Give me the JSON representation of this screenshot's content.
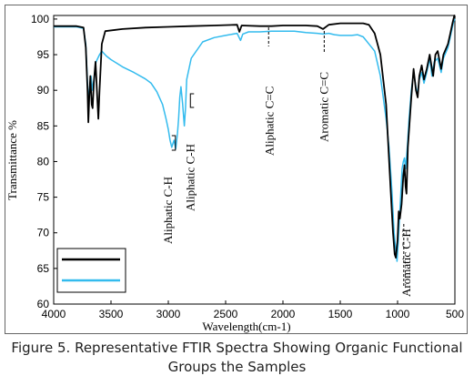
{
  "chart_data": {
    "type": "line",
    "title": "",
    "xlabel": "Wavelength(cm-1)",
    "ylabel": "Transmittance %",
    "xlim": [
      4000,
      500
    ],
    "ylim": [
      60,
      100.5
    ],
    "x_ticks": [
      4000,
      3500,
      3000,
      2500,
      2000,
      1500,
      1000,
      500
    ],
    "y_ticks": [
      60,
      65,
      70,
      75,
      80,
      85,
      90,
      95,
      100
    ],
    "grid": false,
    "legend_position": "bottom-left",
    "series": [
      {
        "color": "#000000",
        "points": [
          [
            4000,
            99.0
          ],
          [
            3800,
            99.0
          ],
          [
            3740,
            98.8
          ],
          [
            3720,
            96.0
          ],
          [
            3705,
            90.0
          ],
          [
            3698,
            85.5
          ],
          [
            3690,
            89.0
          ],
          [
            3680,
            92.0
          ],
          [
            3668,
            88.0
          ],
          [
            3660,
            87.5
          ],
          [
            3650,
            91.0
          ],
          [
            3635,
            94.0
          ],
          [
            3618,
            88.5
          ],
          [
            3610,
            86.0
          ],
          [
            3600,
            90.0
          ],
          [
            3580,
            96.5
          ],
          [
            3550,
            98.3
          ],
          [
            3400,
            98.6
          ],
          [
            3200,
            98.8
          ],
          [
            3000,
            98.9
          ],
          [
            2800,
            99.0
          ],
          [
            2600,
            99.1
          ],
          [
            2400,
            99.2
          ],
          [
            2380,
            98.2
          ],
          [
            2360,
            99.1
          ],
          [
            2200,
            99.0
          ],
          [
            2100,
            99.0
          ],
          [
            2000,
            99.1
          ],
          [
            1800,
            99.1
          ],
          [
            1700,
            99.0
          ],
          [
            1650,
            98.6
          ],
          [
            1600,
            99.2
          ],
          [
            1500,
            99.4
          ],
          [
            1400,
            99.4
          ],
          [
            1300,
            99.4
          ],
          [
            1250,
            99.2
          ],
          [
            1200,
            98.0
          ],
          [
            1150,
            95.0
          ],
          [
            1100,
            88.0
          ],
          [
            1080,
            82.0
          ],
          [
            1060,
            76.0
          ],
          [
            1040,
            70.0
          ],
          [
            1025,
            67.0
          ],
          [
            1015,
            66.5
          ],
          [
            1000,
            69.0
          ],
          [
            990,
            73.0
          ],
          [
            980,
            72.0
          ],
          [
            965,
            74.0
          ],
          [
            950,
            78.0
          ],
          [
            940,
            79.5
          ],
          [
            930,
            76.5
          ],
          [
            922,
            75.5
          ],
          [
            910,
            82.0
          ],
          [
            880,
            89.0
          ],
          [
            860,
            93.0
          ],
          [
            840,
            90.0
          ],
          [
            825,
            89.0
          ],
          [
            810,
            92.0
          ],
          [
            790,
            93.5
          ],
          [
            770,
            91.5
          ],
          [
            745,
            93.0
          ],
          [
            720,
            95.0
          ],
          [
            700,
            93.0
          ],
          [
            690,
            92.0
          ],
          [
            670,
            95.0
          ],
          [
            650,
            95.5
          ],
          [
            620,
            93.0
          ],
          [
            600,
            95.0
          ],
          [
            560,
            96.5
          ],
          [
            540,
            98.0
          ],
          [
            520,
            99.5
          ],
          [
            505,
            100.5
          ],
          [
            500,
            100.2
          ]
        ]
      },
      {
        "color": "#33bbee",
        "points": [
          [
            4000,
            98.9
          ],
          [
            3800,
            98.9
          ],
          [
            3740,
            98.7
          ],
          [
            3720,
            96.5
          ],
          [
            3705,
            91.0
          ],
          [
            3698,
            87.5
          ],
          [
            3690,
            90.0
          ],
          [
            3675,
            92.0
          ],
          [
            3660,
            90.0
          ],
          [
            3650,
            91.5
          ],
          [
            3630,
            94.0
          ],
          [
            3600,
            95.0
          ],
          [
            3580,
            95.5
          ],
          [
            3540,
            94.8
          ],
          [
            3500,
            94.3
          ],
          [
            3450,
            93.8
          ],
          [
            3400,
            93.3
          ],
          [
            3300,
            92.5
          ],
          [
            3200,
            91.6
          ],
          [
            3150,
            91.0
          ],
          [
            3100,
            89.8
          ],
          [
            3050,
            88.0
          ],
          [
            3020,
            86.0
          ],
          [
            3000,
            84.5
          ],
          [
            2985,
            83.0
          ],
          [
            2970,
            82.0
          ],
          [
            2960,
            82.5
          ],
          [
            2950,
            83.0
          ],
          [
            2935,
            81.8
          ],
          [
            2920,
            84.0
          ],
          [
            2910,
            86.0
          ],
          [
            2900,
            89.0
          ],
          [
            2890,
            90.5
          ],
          [
            2875,
            88.0
          ],
          [
            2860,
            85.0
          ],
          [
            2850,
            87.5
          ],
          [
            2840,
            91.5
          ],
          [
            2800,
            94.5
          ],
          [
            2700,
            96.8
          ],
          [
            2600,
            97.4
          ],
          [
            2500,
            97.7
          ],
          [
            2400,
            98.0
          ],
          [
            2370,
            97.0
          ],
          [
            2350,
            97.9
          ],
          [
            2300,
            98.2
          ],
          [
            2200,
            98.2
          ],
          [
            2100,
            98.3
          ],
          [
            2000,
            98.3
          ],
          [
            1900,
            98.3
          ],
          [
            1800,
            98.1
          ],
          [
            1700,
            98.0
          ],
          [
            1650,
            97.9
          ],
          [
            1600,
            98.0
          ],
          [
            1550,
            97.8
          ],
          [
            1500,
            97.7
          ],
          [
            1400,
            97.7
          ],
          [
            1350,
            97.8
          ],
          [
            1300,
            97.5
          ],
          [
            1250,
            96.5
          ],
          [
            1200,
            95.5
          ],
          [
            1150,
            92.0
          ],
          [
            1100,
            86.0
          ],
          [
            1075,
            82.0
          ],
          [
            1050,
            76.0
          ],
          [
            1030,
            70.0
          ],
          [
            1015,
            67.5
          ],
          [
            1005,
            66.0
          ],
          [
            995,
            68.5
          ],
          [
            980,
            73.0
          ],
          [
            960,
            79.0
          ],
          [
            950,
            80.0
          ],
          [
            940,
            80.5
          ],
          [
            930,
            79.0
          ],
          [
            915,
            82.0
          ],
          [
            900,
            86.0
          ],
          [
            880,
            90.0
          ],
          [
            860,
            92.5
          ],
          [
            840,
            90.5
          ],
          [
            825,
            89.5
          ],
          [
            810,
            91.5
          ],
          [
            790,
            92.5
          ],
          [
            770,
            91.0
          ],
          [
            745,
            92.5
          ],
          [
            720,
            94.5
          ],
          [
            700,
            92.0
          ],
          [
            680,
            94.0
          ],
          [
            650,
            94.5
          ],
          [
            620,
            92.5
          ],
          [
            600,
            94.5
          ],
          [
            560,
            96.0
          ],
          [
            540,
            97.5
          ],
          [
            520,
            99.0
          ],
          [
            505,
            100.0
          ],
          [
            500,
            99.8
          ]
        ]
      }
    ],
    "annotations": [
      {
        "text": "Aliphatic C-H",
        "x": 2970
      },
      {
        "text": "Aliphatic C-H",
        "x": 2855
      },
      {
        "text": "Aliphatic C=C",
        "x": 2125
      },
      {
        "text": "Aromatic C=C",
        "x": 1640
      },
      {
        "text": "Aromatic C-H",
        "x": 930
      }
    ]
  },
  "caption": {
    "line1": "Figure 5. Representative FTIR Spectra Showing Organic Functional",
    "line2": "Groups the Samples"
  }
}
